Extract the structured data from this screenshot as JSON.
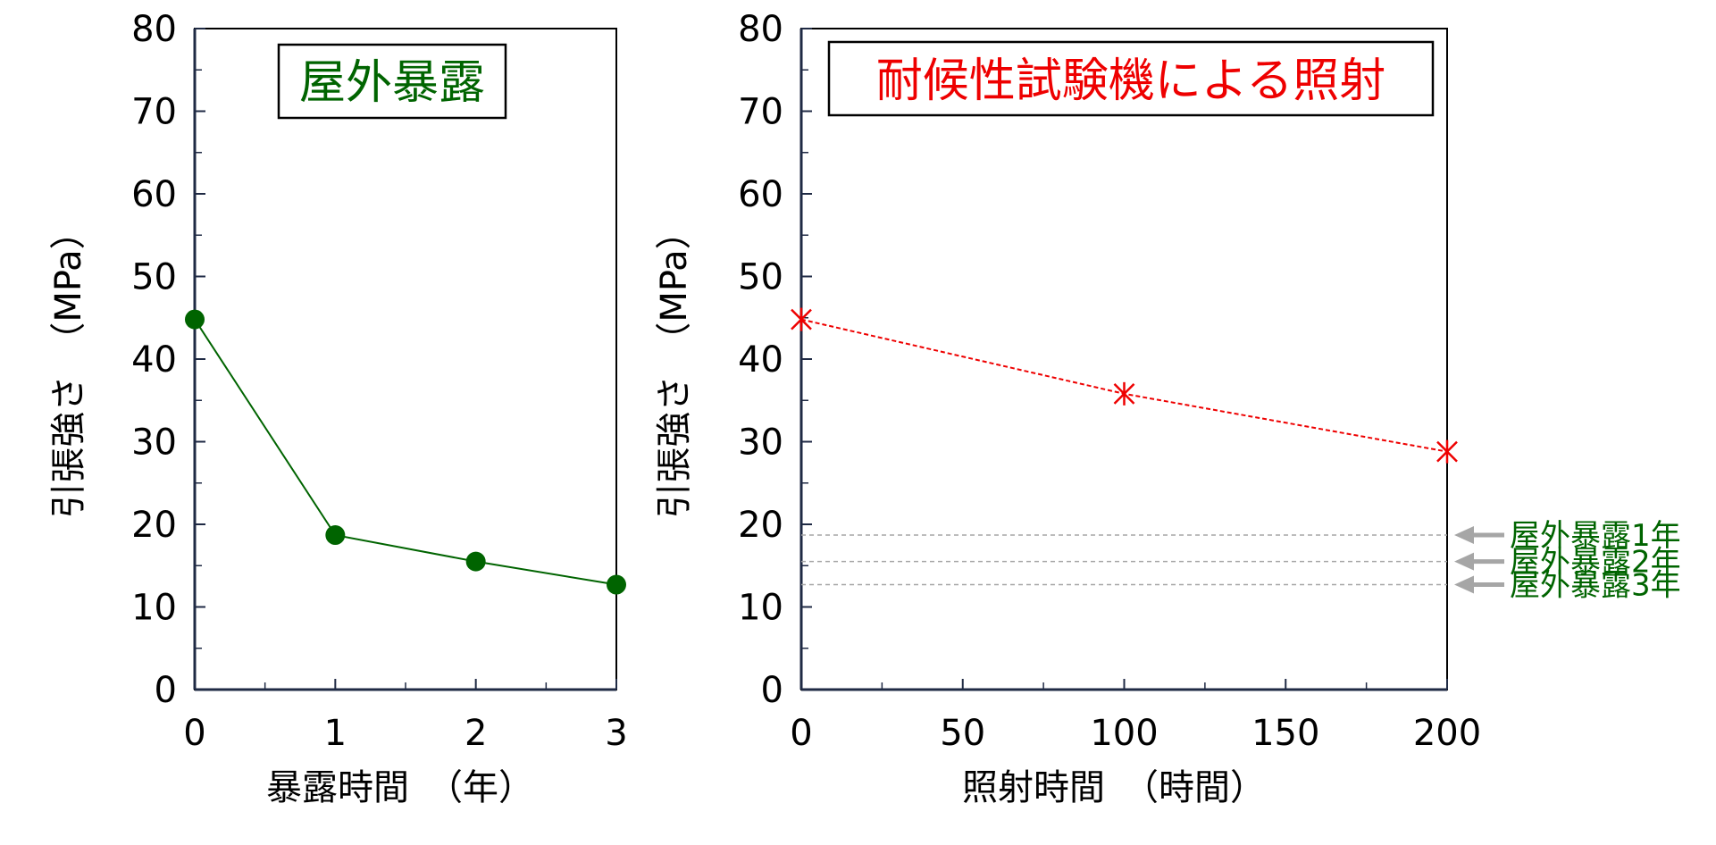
{
  "colors": {
    "outdoor": "#006400",
    "weathering": "#ee0000",
    "reference": "#a6a6a6",
    "axis": "#1f2a44",
    "frame": "#000000"
  },
  "chart_data": [
    {
      "type": "line",
      "title": "屋外暴露",
      "xlabel": "暴露時間　（年）",
      "ylabel": "引張強さ　（MPa）",
      "xlim": [
        0,
        3
      ],
      "ylim": [
        0,
        80
      ],
      "x_ticks": [
        "0",
        "1",
        "2",
        "3"
      ],
      "y_ticks": [
        "0",
        "10",
        "20",
        "30",
        "40",
        "50",
        "60",
        "70",
        "80"
      ],
      "grid": false,
      "series": [
        {
          "x": [
            0,
            1,
            2,
            3
          ],
          "values": [
            44.8,
            18.7,
            15.5,
            12.7
          ],
          "marker": "circle",
          "line": "solid"
        }
      ]
    },
    {
      "type": "line",
      "title": "耐候性試験機による照射",
      "xlabel": "照射時間　（時間）",
      "ylabel": "引張強さ　（MPa）",
      "xlim": [
        0,
        200
      ],
      "ylim": [
        0,
        80
      ],
      "x_ticks": [
        "0",
        "50",
        "100",
        "150",
        "200"
      ],
      "y_ticks": [
        "0",
        "10",
        "20",
        "30",
        "40",
        "50",
        "60",
        "70",
        "80"
      ],
      "grid": false,
      "series": [
        {
          "x": [
            0,
            100,
            200
          ],
          "values": [
            44.8,
            35.8,
            28.8
          ],
          "marker": "asterisk",
          "line": "dashed"
        }
      ],
      "reference_lines": [
        {
          "label": "屋外暴露1年",
          "value": 18.7
        },
        {
          "label": "屋外暴露2年",
          "value": 15.5
        },
        {
          "label": "屋外暴露3年",
          "value": 12.7
        }
      ]
    }
  ]
}
